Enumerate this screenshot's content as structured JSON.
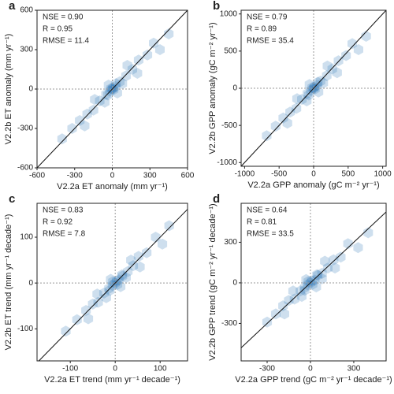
{
  "chart_data": [
    {
      "type": "hexbin",
      "panel_label": "a",
      "annotations": [
        "NSE = 0.90",
        "R = 0.95",
        "RMSE = 11.4"
      ],
      "xlabel": "V2.2a ET anomaly (mm yr⁻¹)",
      "ylabel": "V2.2b ET anomaly (mm yr⁻¹)",
      "xlim": [
        -600,
        600
      ],
      "ylim": [
        -600,
        600
      ],
      "xticks": [
        -600,
        -300,
        0,
        300,
        600
      ],
      "yticks": [
        -600,
        -300,
        0,
        300,
        600
      ],
      "hlines": [
        0
      ],
      "vlines": [
        0
      ],
      "diagonal": true,
      "color": "#1f6fb2",
      "x": [
        0,
        5,
        -20,
        25,
        -50,
        60,
        -100,
        110,
        -150,
        160,
        -200,
        210,
        -260,
        280,
        -320,
        330,
        -60,
        80,
        -30,
        40,
        120,
        -140,
        200,
        -220,
        380,
        -400,
        450,
        10,
        -10,
        30,
        -35
      ],
      "y": [
        0,
        8,
        -15,
        20,
        -40,
        55,
        -90,
        100,
        -160,
        150,
        -190,
        220,
        -240,
        260,
        -300,
        350,
        -100,
        40,
        30,
        -30,
        180,
        -80,
        120,
        -280,
        300,
        -380,
        420,
        -5,
        5,
        40,
        -45
      ]
    },
    {
      "type": "hexbin",
      "panel_label": "b",
      "annotations": [
        "NSE = 0.79",
        "R = 0.89",
        "RMSE = 35.4"
      ],
      "xlabel": "V2.2a GPP anomaly (gC m⁻² yr⁻¹)",
      "ylabel": "V2.2b GPP anomaly (gC m⁻² yr⁻¹)",
      "xlim": [
        -1050,
        1050
      ],
      "ylim": [
        -1050,
        1050
      ],
      "xticks": [
        -1000,
        -500,
        0,
        500,
        1000
      ],
      "yticks": [
        -1000,
        -500,
        0,
        500,
        1000
      ],
      "hlines": [
        0
      ],
      "vlines": [
        0
      ],
      "diagonal": true,
      "color": "#1f6fb2",
      "x": [
        0,
        10,
        -40,
        50,
        -90,
        100,
        -170,
        190,
        -250,
        270,
        -340,
        360,
        -440,
        470,
        -550,
        560,
        -100,
        140,
        -60,
        70,
        200,
        -240,
        340,
        -380,
        650,
        -680,
        760,
        20,
        -20,
        60,
        -70
      ],
      "y": [
        0,
        15,
        -30,
        40,
        -70,
        95,
        -150,
        170,
        -270,
        260,
        -320,
        370,
        -400,
        440,
        -510,
        600,
        -170,
        70,
        50,
        -50,
        300,
        -140,
        210,
        -470,
        520,
        -640,
        700,
        -10,
        10,
        80,
        -90
      ]
    },
    {
      "type": "hexbin",
      "panel_label": "c",
      "annotations": [
        "NSE = 0.83",
        "R = 0.92",
        "RMSE = 7.8"
      ],
      "xlabel": "V2.2a ET trend (mm yr⁻¹ decade⁻¹)",
      "ylabel": "V2.2b ET trend (mm yr⁻¹ decade⁻¹)",
      "xlim": [
        -174,
        161
      ],
      "ylim": [
        -170,
        174
      ],
      "xticks": [
        -100,
        0,
        100
      ],
      "yticks": [
        -100,
        0,
        100
      ],
      "hlines": [
        0
      ],
      "vlines": [
        0
      ],
      "diagonal": true,
      "color": "#1f6fb2",
      "x": [
        0,
        3,
        -6,
        8,
        -14,
        16,
        -25,
        28,
        -38,
        40,
        -50,
        52,
        -65,
        70,
        -85,
        90,
        -20,
        24,
        -10,
        12,
        35,
        -40,
        55,
        -60,
        105,
        -110,
        120,
        5,
        -5,
        15,
        -12
      ],
      "y": [
        0,
        4,
        -5,
        7,
        -12,
        15,
        -22,
        25,
        -42,
        38,
        -46,
        58,
        -60,
        66,
        -80,
        100,
        -32,
        12,
        8,
        -8,
        50,
        -24,
        35,
        -78,
        85,
        -105,
        125,
        -3,
        3,
        18,
        -16
      ]
    },
    {
      "type": "hexbin",
      "panel_label": "d",
      "annotations": [
        "NSE = 0.64",
        "R = 0.81",
        "RMSE = 33.5"
      ],
      "xlabel": "V2.2a GPP trend  (gC m⁻² yr⁻¹ decade⁻¹)",
      "ylabel": "V2.2b GPP trend (gC m⁻² yr⁻¹ decade⁻¹)",
      "xlim": [
        -480,
        524
      ],
      "ylim": [
        -577,
        588
      ],
      "xticks": [
        -300,
        0,
        300
      ],
      "yticks": [
        -300,
        0,
        300
      ],
      "hlines": [
        0
      ],
      "vlines": [
        0
      ],
      "diagonal": true,
      "color": "#1f6fb2",
      "x": [
        0,
        10,
        -20,
        30,
        -40,
        50,
        -70,
        80,
        -110,
        120,
        -150,
        160,
        -190,
        210,
        -240,
        260,
        -60,
        80,
        -30,
        40,
        100,
        -120,
        170,
        -180,
        330,
        -300,
        400,
        15,
        -15,
        45,
        -40
      ],
      "y": [
        0,
        15,
        -15,
        20,
        -35,
        55,
        -60,
        70,
        -120,
        110,
        -130,
        170,
        -170,
        190,
        -230,
        290,
        -100,
        30,
        25,
        -30,
        160,
        -60,
        110,
        -230,
        260,
        -290,
        370,
        -10,
        10,
        60,
        -55
      ]
    }
  ]
}
